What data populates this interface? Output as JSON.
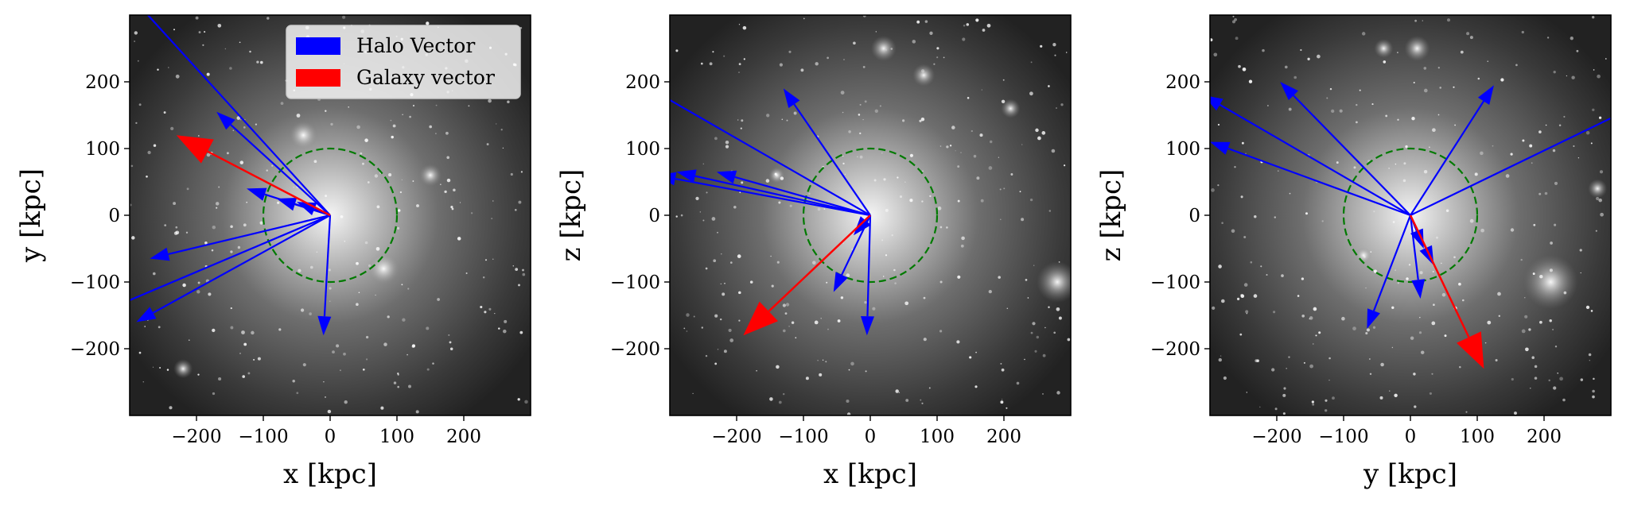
{
  "chart_data": [
    {
      "type": "vector-field",
      "xlabel": "x [kpc]",
      "ylabel": "y [kpc]",
      "xlim": [
        -300,
        300
      ],
      "ylim": [
        -300,
        300
      ],
      "xticks": [
        -200,
        -100,
        0,
        100,
        200
      ],
      "yticks": [
        -200,
        -100,
        0,
        100,
        200
      ],
      "tick_labels": [
        "−200",
        "−100",
        "0",
        "100",
        "200"
      ],
      "circle_radius": 100,
      "background": "dark matter density map (grayscale)",
      "legend": {
        "placement": "upper right",
        "entries": [
          {
            "label": "Halo Vector",
            "color": "#0000ff"
          },
          {
            "label": "Galaxy vector",
            "color": "#ff0000"
          }
        ]
      },
      "halo_vectors": [
        [
          -300,
          330
        ],
        [
          -170,
          155
        ],
        [
          -125,
          40
        ],
        [
          -80,
          25
        ],
        [
          -50,
          20
        ],
        [
          -270,
          -65
        ],
        [
          -290,
          -160
        ],
        [
          -330,
          -140
        ],
        [
          -10,
          -180
        ]
      ],
      "galaxy_vector": [
        -230,
        120
      ]
    },
    {
      "type": "vector-field",
      "xlabel": "x [kpc]",
      "ylabel": "z [kpc]",
      "xlim": [
        -300,
        300
      ],
      "ylim": [
        -300,
        300
      ],
      "xticks": [
        -200,
        -100,
        0,
        100,
        200
      ],
      "yticks": [
        -200,
        -100,
        0,
        100,
        200
      ],
      "tick_labels": [
        "−200",
        "−100",
        "0",
        "100",
        "200"
      ],
      "circle_radius": 100,
      "background": "dark matter density map (grayscale)",
      "halo_vectors": [
        [
          -130,
          190
        ],
        [
          -330,
          190
        ],
        [
          -230,
          65
        ],
        [
          -290,
          65
        ],
        [
          -320,
          60
        ],
        [
          -25,
          -30
        ],
        [
          -55,
          -115
        ],
        [
          -5,
          -180
        ]
      ],
      "galaxy_vector": [
        -190,
        -180
      ]
    },
    {
      "type": "vector-field",
      "xlabel": "y [kpc]",
      "ylabel": "z [kpc]",
      "xlim": [
        -300,
        300
      ],
      "ylim": [
        -300,
        300
      ],
      "xticks": [
        -200,
        -100,
        0,
        100,
        200
      ],
      "yticks": [
        -200,
        -100,
        0,
        100,
        200
      ],
      "tick_labels": [
        "−200",
        "−100",
        "0",
        "100",
        "200"
      ],
      "circle_radius": 100,
      "background": "dark matter density map (grayscale)",
      "halo_vectors": [
        [
          -195,
          200
        ],
        [
          -310,
          180
        ],
        [
          -300,
          110
        ],
        [
          125,
          195
        ],
        [
          330,
          160
        ],
        [
          -65,
          -170
        ],
        [
          15,
          -125
        ],
        [
          35,
          -75
        ],
        [
          20,
          -50
        ]
      ],
      "galaxy_vector": [
        110,
        -230
      ]
    }
  ],
  "colors": {
    "halo": "#0000ff",
    "galaxy": "#ff0000",
    "circle": "#007a00"
  }
}
